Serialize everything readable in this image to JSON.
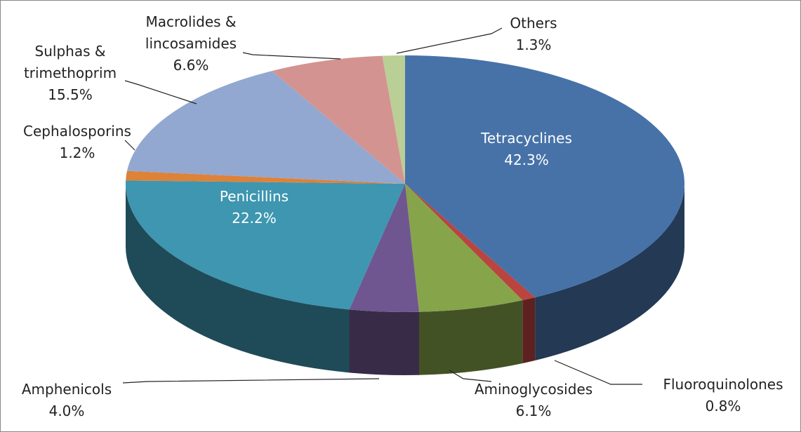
{
  "chart_data": {
    "type": "pie3d",
    "categories": [
      "Tetracyclines",
      "Fluoroquinolones",
      "Aminoglycosides",
      "Amphenicols",
      "Penicillins",
      "Cephalosporins",
      "Sulphas & trimethoprim",
      "Macrolides & lincosamides",
      "Others"
    ],
    "values": [
      42.3,
      0.8,
      6.1,
      4.0,
      22.2,
      1.2,
      15.5,
      6.6,
      1.3
    ],
    "value_labels": [
      "42.3%",
      "0.8%",
      "6.1%",
      "4.0%",
      "22.2%",
      "1.2%",
      "15.5%",
      "6.6%",
      "1.3%"
    ],
    "colors": [
      "#4672a8",
      "#b94440",
      "#86a44a",
      "#6f5690",
      "#3e96b0",
      "#dd8239",
      "#92a8d1",
      "#d39390",
      "#b9cf96"
    ]
  }
}
